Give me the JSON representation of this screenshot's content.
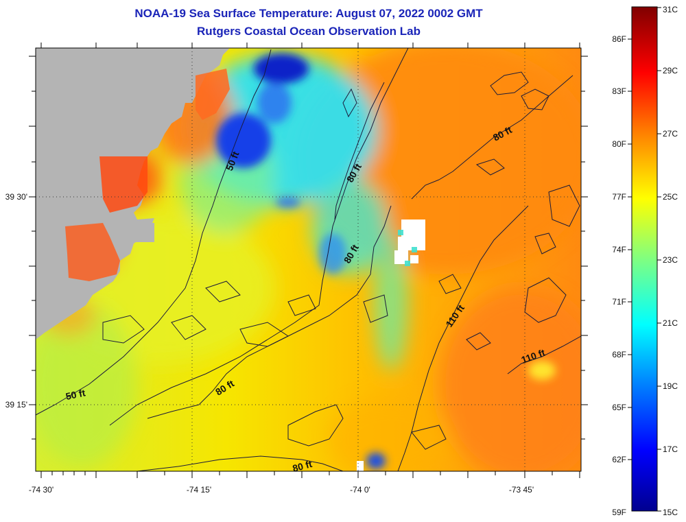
{
  "title": "NOAA-19 Sea Surface Temperature:  August 07, 2022 0002 GMT",
  "subtitle": "Rutgers Coastal Ocean Observation Lab",
  "axes": {
    "x_ticks": [
      "-74 30'",
      "-74 15'",
      "-74 0'",
      "-73 45'"
    ],
    "y_ticks": [
      "39 30'",
      "39 15'"
    ]
  },
  "colorbar": {
    "celsius": [
      "31C",
      "29C",
      "27C",
      "25C",
      "23C",
      "21C",
      "19C",
      "17C",
      "15C"
    ],
    "fahrenheit": [
      "86F",
      "83F",
      "80F",
      "77F",
      "74F",
      "71F",
      "68F",
      "65F",
      "62F",
      "59F"
    ],
    "range_c": [
      15,
      31
    ],
    "palette": [
      "#00008f",
      "#0000ff",
      "#0080ff",
      "#00ffff",
      "#80ff80",
      "#ffff00",
      "#ff8000",
      "#ff0000",
      "#800000"
    ]
  },
  "colors": {
    "land": "#b4b4b4",
    "no_data": "#ffffff",
    "title": "#1a24b8"
  },
  "contour_labels": [
    "50 ft",
    "80 ft",
    "80 ft",
    "80 ft",
    "80 ft",
    "110 ft",
    "110 ft",
    "50 ft",
    "80 ft"
  ]
}
